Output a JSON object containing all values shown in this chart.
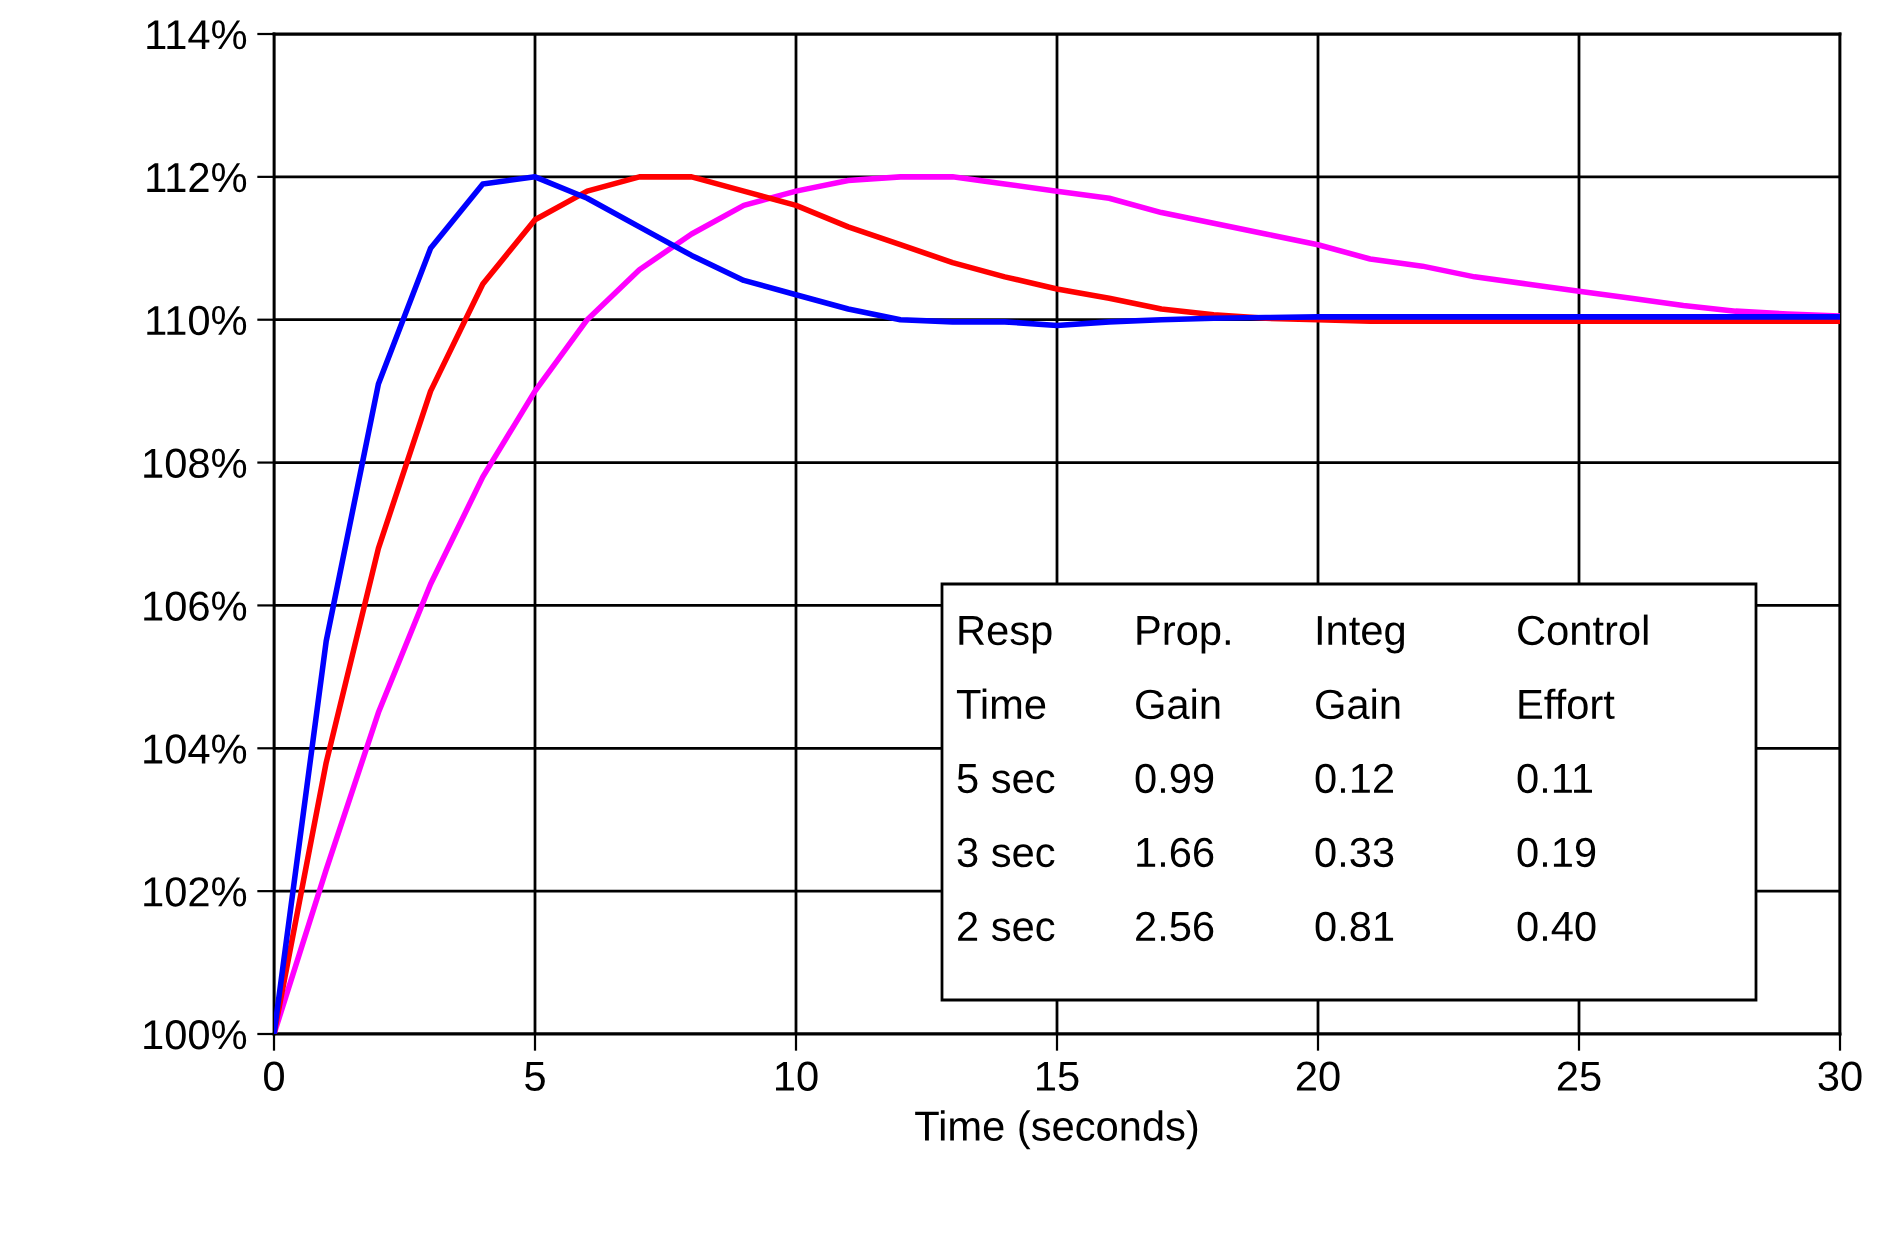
{
  "chart_data": {
    "type": "line",
    "xlabel": "Time (seconds)",
    "x": [
      0,
      1,
      2,
      3,
      4,
      5,
      6,
      7,
      8,
      9,
      10,
      11,
      12,
      13,
      14,
      15,
      16,
      17,
      18,
      19,
      20,
      21,
      22,
      23,
      24,
      25,
      26,
      27,
      28,
      29,
      30
    ],
    "series": [
      {
        "color": "#0000ff",
        "values": [
          100,
          105.5,
          109.1,
          111.0,
          111.9,
          112.0,
          111.7,
          111.3,
          110.9,
          110.55,
          110.35,
          110.15,
          110.0,
          109.97,
          109.97,
          109.92,
          109.97,
          110.0,
          110.02,
          110.03,
          110.04,
          110.04,
          110.04,
          110.04,
          110.04,
          110.04,
          110.04,
          110.04,
          110.04,
          110.04,
          110.04
        ]
      },
      {
        "color": "#ff0000",
        "values": [
          100,
          103.8,
          106.8,
          109.0,
          110.5,
          111.4,
          111.8,
          112.0,
          112.0,
          111.8,
          111.6,
          111.3,
          111.05,
          110.8,
          110.6,
          110.43,
          110.3,
          110.15,
          110.07,
          110.02,
          110.0,
          109.98,
          109.98,
          109.98,
          109.98,
          109.98,
          109.98,
          109.98,
          109.98,
          109.98,
          109.98
        ]
      },
      {
        "color": "#ff00ff",
        "values": [
          100,
          102.3,
          104.5,
          106.3,
          107.8,
          109.0,
          110.0,
          110.7,
          111.2,
          111.6,
          111.8,
          111.95,
          112.0,
          112.0,
          111.9,
          111.8,
          111.7,
          111.5,
          111.35,
          111.2,
          111.05,
          110.85,
          110.75,
          110.6,
          110.5,
          110.4,
          110.3,
          110.2,
          110.12,
          110.08,
          110.05
        ]
      }
    ],
    "xlim": [
      0,
      30
    ],
    "xticks": [
      0,
      5,
      10,
      15,
      20,
      25,
      30
    ],
    "ylim": [
      100,
      114
    ],
    "yticks": [
      {
        "value": 100,
        "label": "100%"
      },
      {
        "value": 102,
        "label": "102%"
      },
      {
        "value": 104,
        "label": "104%"
      },
      {
        "value": 106,
        "label": "106%"
      },
      {
        "value": 108,
        "label": "108%"
      },
      {
        "value": 110,
        "label": "110%"
      },
      {
        "value": 112,
        "label": "112%"
      },
      {
        "value": 114,
        "label": "114%"
      }
    ],
    "grid": true,
    "line_style": "solid",
    "marker": "none",
    "annotations": [
      "Resp",
      "Prop.",
      "Integ",
      "Control",
      "Time",
      "Gain",
      "Gain",
      "Effort",
      "5 sec",
      "0.99",
      "0.12",
      "0.11",
      "3 sec",
      "1.66",
      "0.33",
      "0.19",
      "2 sec",
      "2.56",
      "0.81",
      "0.40"
    ]
  }
}
